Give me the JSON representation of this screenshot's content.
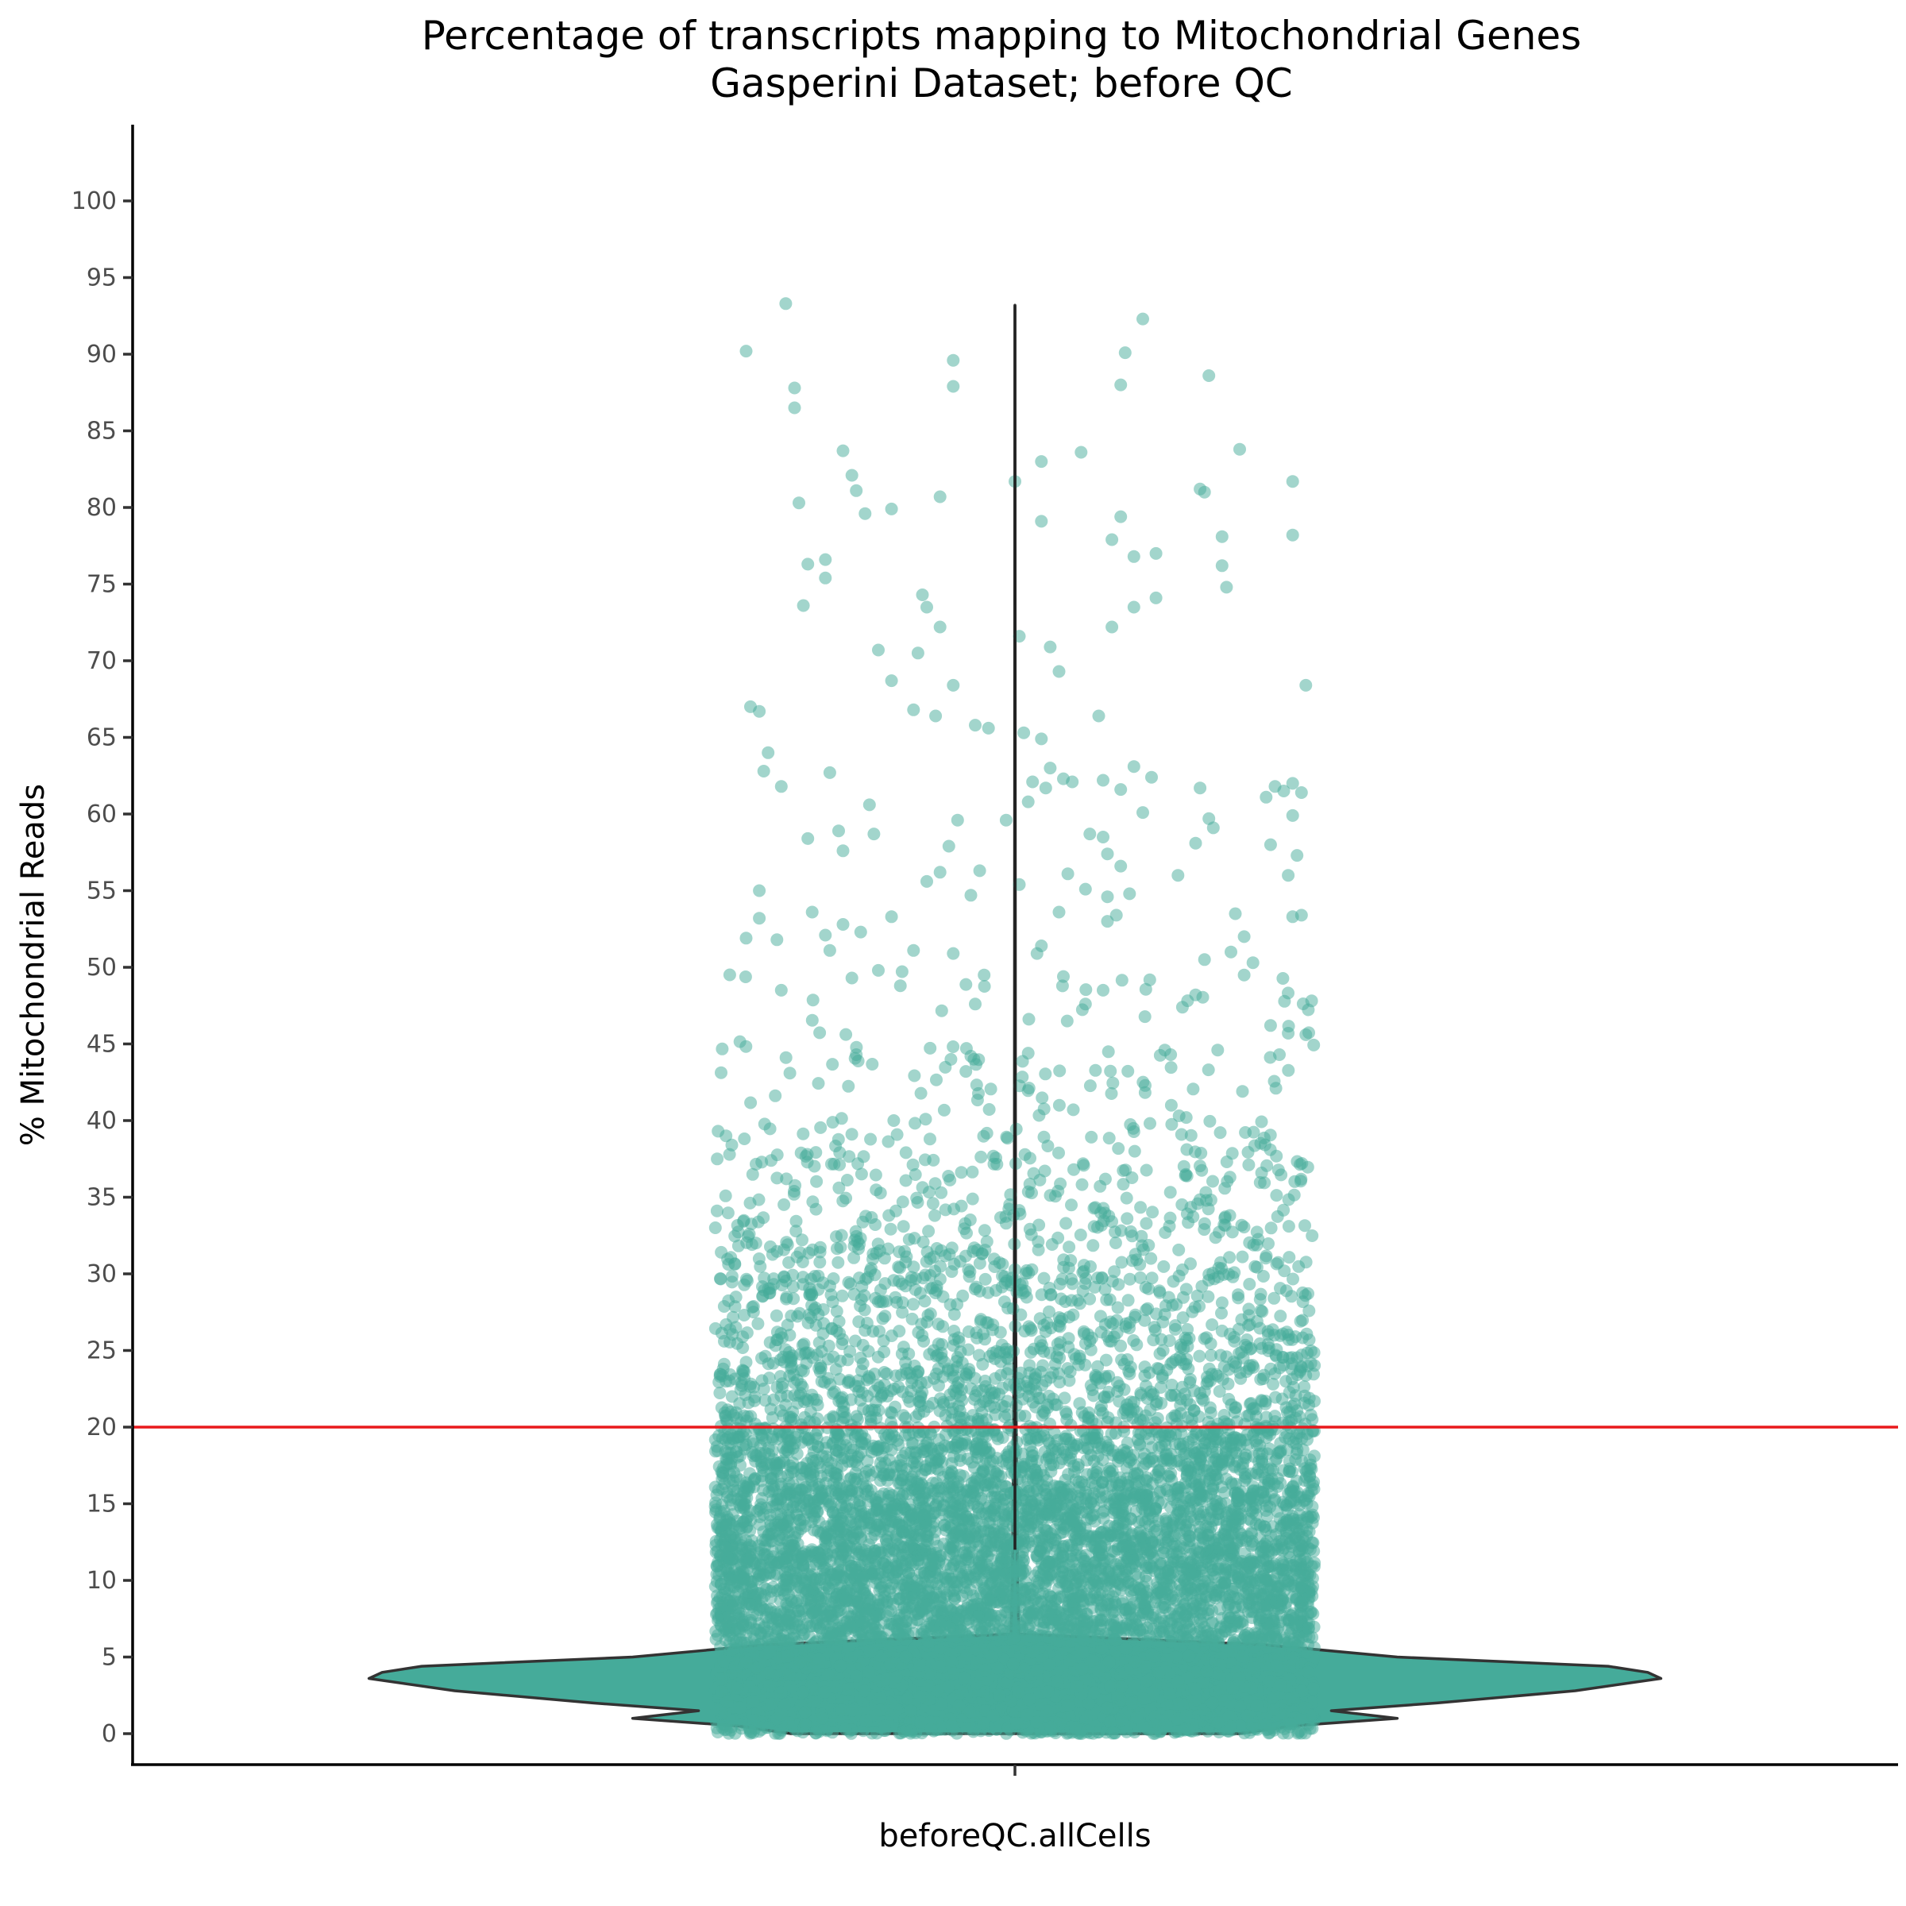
{
  "chart_data": {
    "type": "violin",
    "title": "Percentage of transcripts mapping to Mitochondrial Genes",
    "subtitle": "Gasperini Dataset; before QC",
    "xlabel": "",
    "ylabel": "% Mitochondrial Reads",
    "categories": [
      "beforeQC.allCells"
    ],
    "ylim": [
      -5,
      105
    ],
    "yticks": [
      0,
      5,
      10,
      15,
      20,
      25,
      30,
      35,
      40,
      45,
      50,
      55,
      60,
      65,
      70,
      75,
      80,
      85,
      90,
      95,
      100
    ],
    "grid": false,
    "legend": "none",
    "colors": {
      "violin_fill": "#45ab9a",
      "violin_outline": "#333333",
      "points": "#45ab9a",
      "threshold_line": "#e8191c",
      "median_line": "#222222"
    },
    "threshold": {
      "y": 20
    },
    "violin_range": [
      0,
      93.2
    ],
    "density_profile": [
      {
        "y": 0.0,
        "w": 0.34
      },
      {
        "y": 0.5,
        "w": 0.42
      },
      {
        "y": 1.0,
        "w": 0.58
      },
      {
        "y": 1.5,
        "w": 0.48
      },
      {
        "y": 2.0,
        "w": 0.64
      },
      {
        "y": 2.8,
        "w": 0.85
      },
      {
        "y": 3.6,
        "w": 0.98
      },
      {
        "y": 4.0,
        "w": 0.96
      },
      {
        "y": 4.4,
        "w": 0.9
      },
      {
        "y": 5.0,
        "w": 0.58
      },
      {
        "y": 5.8,
        "w": 0.38
      },
      {
        "y": 6.5,
        "w": 0.006
      },
      {
        "y": 10.0,
        "w": 0.004
      },
      {
        "y": 20.0,
        "w": 0.002
      },
      {
        "y": 30.0,
        "w": 0.001
      },
      {
        "y": 93.2,
        "w": 0.0
      }
    ],
    "outlier_points": [
      {
        "x": -0.61,
        "y": 90.2
      },
      {
        "x": -0.52,
        "y": 93.3
      },
      {
        "x": -0.5,
        "y": 87.8
      },
      {
        "x": -0.5,
        "y": 86.5
      },
      {
        "x": -0.49,
        "y": 80.3
      },
      {
        "x": -0.47,
        "y": 76.3
      },
      {
        "x": -0.48,
        "y": 73.6
      },
      {
        "x": -0.43,
        "y": 76.6
      },
      {
        "x": -0.43,
        "y": 75.4
      },
      {
        "x": -0.39,
        "y": 83.7
      },
      {
        "x": -0.37,
        "y": 82.1
      },
      {
        "x": -0.36,
        "y": 81.1
      },
      {
        "x": -0.34,
        "y": 79.6
      },
      {
        "x": -0.28,
        "y": 79.9
      },
      {
        "x": -0.17,
        "y": 80.7
      },
      {
        "x": -0.14,
        "y": 89.6
      },
      {
        "x": -0.14,
        "y": 87.9
      },
      {
        "x": -0.21,
        "y": 74.3
      },
      {
        "x": -0.2,
        "y": 73.5
      },
      {
        "x": -0.17,
        "y": 72.2
      },
      {
        "x": -0.22,
        "y": 70.5
      },
      {
        "x": -0.31,
        "y": 70.7
      },
      {
        "x": -0.28,
        "y": 68.7
      },
      {
        "x": -0.23,
        "y": 66.8
      },
      {
        "x": -0.14,
        "y": 68.4
      },
      {
        "x": -0.18,
        "y": 66.4
      },
      {
        "x": -0.09,
        "y": 65.8
      },
      {
        "x": -0.06,
        "y": 65.6
      },
      {
        "x": 0.0,
        "y": 81.7
      },
      {
        "x": 0.06,
        "y": 83.0
      },
      {
        "x": 0.15,
        "y": 83.6
      },
      {
        "x": 0.06,
        "y": 79.1
      },
      {
        "x": 0.22,
        "y": 77.9
      },
      {
        "x": 0.24,
        "y": 79.4
      },
      {
        "x": 0.27,
        "y": 76.8
      },
      {
        "x": 0.32,
        "y": 77.0
      },
      {
        "x": 0.27,
        "y": 73.5
      },
      {
        "x": 0.32,
        "y": 74.1
      },
      {
        "x": 0.22,
        "y": 72.2
      },
      {
        "x": 0.25,
        "y": 90.1
      },
      {
        "x": 0.29,
        "y": 92.3
      },
      {
        "x": 0.24,
        "y": 88.0
      },
      {
        "x": 0.44,
        "y": 88.6
      },
      {
        "x": 0.51,
        "y": 83.8
      },
      {
        "x": 0.42,
        "y": 81.2
      },
      {
        "x": 0.43,
        "y": 81.0
      },
      {
        "x": 0.47,
        "y": 78.1
      },
      {
        "x": 0.47,
        "y": 76.2
      },
      {
        "x": 0.48,
        "y": 74.8
      },
      {
        "x": 0.63,
        "y": 81.7
      },
      {
        "x": 0.63,
        "y": 78.2
      },
      {
        "x": 0.66,
        "y": 68.4
      },
      {
        "x": 0.01,
        "y": 71.6
      },
      {
        "x": 0.08,
        "y": 70.9
      },
      {
        "x": 0.1,
        "y": 69.3
      },
      {
        "x": 0.19,
        "y": 66.4
      },
      {
        "x": 0.02,
        "y": 65.3
      },
      {
        "x": 0.06,
        "y": 64.9
      },
      {
        "x": -0.6,
        "y": 67.0
      },
      {
        "x": -0.58,
        "y": 66.7
      },
      {
        "x": -0.56,
        "y": 64.0
      },
      {
        "x": -0.57,
        "y": 62.8
      },
      {
        "x": -0.53,
        "y": 61.8
      },
      {
        "x": -0.42,
        "y": 62.7
      },
      {
        "x": -0.33,
        "y": 60.6
      },
      {
        "x": -0.32,
        "y": 58.7
      },
      {
        "x": -0.47,
        "y": 58.4
      },
      {
        "x": -0.4,
        "y": 58.9
      },
      {
        "x": -0.39,
        "y": 57.6
      },
      {
        "x": -0.58,
        "y": 55.0
      },
      {
        "x": -0.58,
        "y": 53.2
      },
      {
        "x": -0.61,
        "y": 51.9
      },
      {
        "x": -0.54,
        "y": 51.8
      },
      {
        "x": -0.53,
        "y": 48.5
      },
      {
        "x": -0.46,
        "y": 53.6
      },
      {
        "x": -0.43,
        "y": 52.1
      },
      {
        "x": -0.42,
        "y": 51.1
      },
      {
        "x": -0.39,
        "y": 52.8
      },
      {
        "x": -0.35,
        "y": 52.3
      },
      {
        "x": -0.28,
        "y": 53.3
      },
      {
        "x": -0.23,
        "y": 51.1
      },
      {
        "x": -0.15,
        "y": 57.9
      },
      {
        "x": -0.13,
        "y": 59.6
      },
      {
        "x": -0.08,
        "y": 56.3
      },
      {
        "x": -0.1,
        "y": 54.7
      },
      {
        "x": -0.14,
        "y": 50.9
      },
      {
        "x": -0.2,
        "y": 55.6
      },
      {
        "x": -0.17,
        "y": 56.2
      },
      {
        "x": -0.07,
        "y": 49.5
      },
      {
        "x": -0.02,
        "y": 59.6
      },
      {
        "x": 0.01,
        "y": 55.4
      },
      {
        "x": 0.03,
        "y": 60.8
      },
      {
        "x": 0.04,
        "y": 62.1
      },
      {
        "x": 0.07,
        "y": 61.7
      },
      {
        "x": 0.08,
        "y": 63.0
      },
      {
        "x": 0.11,
        "y": 62.3
      },
      {
        "x": 0.13,
        "y": 62.1
      },
      {
        "x": 0.17,
        "y": 58.7
      },
      {
        "x": 0.16,
        "y": 55.1
      },
      {
        "x": 0.12,
        "y": 56.1
      },
      {
        "x": 0.1,
        "y": 53.6
      },
      {
        "x": 0.06,
        "y": 51.4
      },
      {
        "x": 0.05,
        "y": 50.9
      },
      {
        "x": 0.2,
        "y": 62.2
      },
      {
        "x": 0.24,
        "y": 61.6
      },
      {
        "x": 0.27,
        "y": 63.1
      },
      {
        "x": 0.29,
        "y": 60.1
      },
      {
        "x": 0.31,
        "y": 62.4
      },
      {
        "x": 0.2,
        "y": 58.5
      },
      {
        "x": 0.21,
        "y": 57.4
      },
      {
        "x": 0.24,
        "y": 56.6
      },
      {
        "x": 0.21,
        "y": 54.6
      },
      {
        "x": 0.23,
        "y": 53.4
      },
      {
        "x": 0.26,
        "y": 54.8
      },
      {
        "x": 0.21,
        "y": 53.0
      },
      {
        "x": 0.2,
        "y": 48.5
      },
      {
        "x": 0.37,
        "y": 56.0
      },
      {
        "x": 0.41,
        "y": 58.1
      },
      {
        "x": 0.44,
        "y": 59.7
      },
      {
        "x": 0.45,
        "y": 59.1
      },
      {
        "x": 0.42,
        "y": 61.7
      },
      {
        "x": 0.5,
        "y": 53.5
      },
      {
        "x": 0.52,
        "y": 52.0
      },
      {
        "x": 0.49,
        "y": 51.0
      },
      {
        "x": 0.43,
        "y": 50.5
      },
      {
        "x": 0.52,
        "y": 49.5
      },
      {
        "x": 0.54,
        "y": 50.3
      },
      {
        "x": 0.57,
        "y": 61.1
      },
      {
        "x": 0.59,
        "y": 61.8
      },
      {
        "x": 0.61,
        "y": 61.5
      },
      {
        "x": 0.63,
        "y": 62.0
      },
      {
        "x": 0.65,
        "y": 61.4
      },
      {
        "x": 0.63,
        "y": 59.9
      },
      {
        "x": 0.58,
        "y": 58.0
      },
      {
        "x": 0.64,
        "y": 57.3
      },
      {
        "x": 0.62,
        "y": 56.0
      },
      {
        "x": 0.63,
        "y": 53.3
      },
      {
        "x": 0.65,
        "y": 53.4
      },
      {
        "x": -0.37,
        "y": 49.3
      },
      {
        "x": -0.31,
        "y": 49.8
      },
      {
        "x": -0.26,
        "y": 48.8
      },
      {
        "x": -0.09,
        "y": 47.6
      },
      {
        "x": 0.11,
        "y": 49.4
      },
      {
        "x": 0.16,
        "y": 47.6
      },
      {
        "x": 0.38,
        "y": 47.4
      },
      {
        "x": 0.41,
        "y": 48.2
      },
      {
        "x": 0.58,
        "y": 46.2
      },
      {
        "x": 0.62,
        "y": 45.7
      },
      {
        "x": 0.66,
        "y": 45.6
      },
      {
        "x": -0.36,
        "y": 44.3
      },
      {
        "x": -0.1,
        "y": 44.2
      },
      {
        "x": 0.03,
        "y": 44.4
      },
      {
        "x": 0.34,
        "y": 44.6
      },
      {
        "x": 0.46,
        "y": 44.6
      },
      {
        "x": 0.6,
        "y": 44.3
      }
    ],
    "main_cloud": {
      "description_x_range": [
        -0.68,
        0.68
      ],
      "bands": [
        {
          "y_from": 0,
          "y_to": 6,
          "count": 2600
        },
        {
          "y_from": 6,
          "y_to": 12,
          "count": 2400
        },
        {
          "y_from": 12,
          "y_to": 16,
          "count": 1400
        },
        {
          "y_from": 16,
          "y_to": 20,
          "count": 1000
        },
        {
          "y_from": 20,
          "y_to": 25,
          "count": 650
        },
        {
          "y_from": 25,
          "y_to": 30,
          "count": 420
        },
        {
          "y_from": 30,
          "y_to": 35,
          "count": 260
        },
        {
          "y_from": 35,
          "y_to": 40,
          "count": 160
        },
        {
          "y_from": 40,
          "y_to": 45,
          "count": 70
        },
        {
          "y_from": 45,
          "y_to": 50,
          "count": 30
        }
      ]
    }
  }
}
